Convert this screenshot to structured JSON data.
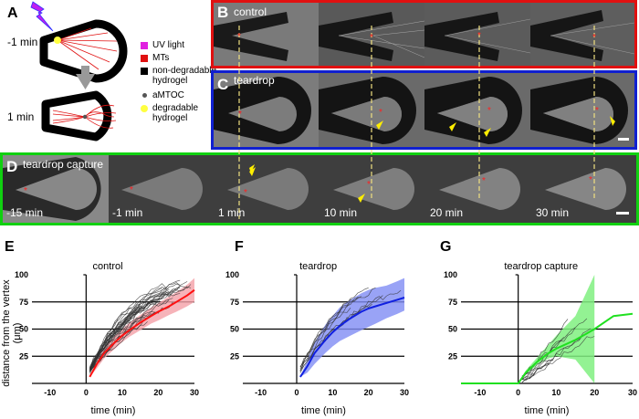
{
  "panel_a": {
    "letter": "A",
    "time_before": "-1 min",
    "time_after": "1 min",
    "legend": [
      {
        "label": "UV light",
        "color": "#e020e0",
        "shape": "square"
      },
      {
        "label": "MTs",
        "color": "#e01010",
        "shape": "square"
      },
      {
        "label": "non-degradable",
        "label2": "hydrogel",
        "color": "#000000",
        "shape": "square"
      },
      {
        "label": "aMTOC",
        "color": "#555555",
        "shape": "dot"
      },
      {
        "label": "degradable",
        "label2": "hydrogel",
        "color": "#ffff40",
        "shape": "dot"
      }
    ]
  },
  "panel_b": {
    "letter": "B",
    "title": "control",
    "border_color": "#e01010"
  },
  "panel_c": {
    "letter": "C",
    "title": "teardrop",
    "border_color": "#1020d0"
  },
  "panel_d": {
    "letter": "D",
    "title": "teardrop capture",
    "border_color": "#10d010",
    "time_labels": [
      "-15 min",
      "-1 min",
      "1 min",
      "10 min",
      "20 min",
      "30 min"
    ]
  },
  "charts": {
    "ylabel": "distance from the vertex (μm)",
    "xlabel": "time (min)"
  },
  "chart_data": [
    {
      "type": "line",
      "panel": "E",
      "title": "control",
      "xlabel": "time (min)",
      "ylabel": "distance from the vertex (μm)",
      "xlim": [
        -15,
        30
      ],
      "ylim": [
        0,
        100
      ],
      "xticks": [
        -10,
        0,
        10,
        20,
        30
      ],
      "yticks": [
        25,
        50,
        75,
        100
      ],
      "gridlines_y": [
        25,
        50,
        75
      ],
      "mean_color": "#ff1010",
      "band_color": "#f4a0a8",
      "mean": {
        "x": [
          1,
          3,
          5,
          8,
          10,
          12,
          15,
          18,
          20,
          23,
          25,
          28,
          30
        ],
        "y": [
          6,
          18,
          28,
          38,
          44,
          49,
          56,
          62,
          66,
          71,
          75,
          81,
          86
        ]
      },
      "band_upper": [
        6,
        22,
        33,
        44,
        50,
        56,
        63,
        70,
        74,
        80,
        84,
        91,
        97
      ],
      "band_lower": [
        6,
        14,
        23,
        32,
        38,
        43,
        49,
        55,
        58,
        63,
        66,
        71,
        75
      ],
      "traces_note": "~30 individual grey traces"
    },
    {
      "type": "line",
      "panel": "F",
      "title": "teardrop",
      "xlabel": "time (min)",
      "xlim": [
        -15,
        30
      ],
      "ylim": [
        0,
        100
      ],
      "xticks": [
        -10,
        0,
        10,
        20,
        30
      ],
      "yticks": [
        25,
        50,
        75,
        100
      ],
      "gridlines_y": [
        25,
        50,
        75
      ],
      "mean_color": "#1020e0",
      "band_color": "#7f8cf4",
      "mean": {
        "x": [
          1,
          3,
          5,
          8,
          10,
          12,
          15,
          18,
          20,
          22,
          25,
          28,
          30
        ],
        "y": [
          6,
          16,
          28,
          40,
          47,
          53,
          60,
          66,
          69,
          71,
          74,
          77,
          79
        ]
      },
      "band_upper": [
        6,
        22,
        38,
        54,
        62,
        70,
        77,
        83,
        86,
        88,
        90,
        94,
        97
      ],
      "band_lower": [
        6,
        10,
        18,
        28,
        34,
        39,
        44,
        49,
        52,
        55,
        60,
        64,
        67
      ],
      "traces_note": "~8 individual grey traces"
    },
    {
      "type": "line",
      "panel": "G",
      "title": "teardrop capture",
      "xlabel": "time (min)",
      "xlim": [
        -15,
        30
      ],
      "ylim": [
        0,
        100
      ],
      "xticks": [
        -10,
        0,
        10,
        20,
        30
      ],
      "yticks": [
        25,
        50,
        75,
        100
      ],
      "gridlines_y": [
        25,
        50,
        75
      ],
      "mean_color": "#20e020",
      "band_color": "#80f080",
      "mean": {
        "x": [
          -15,
          0,
          2,
          5,
          8,
          10,
          15,
          20,
          25,
          30
        ],
        "y": [
          0,
          0,
          10,
          20,
          28,
          32,
          40,
          50,
          62,
          64
        ]
      },
      "band_upper": [
        0,
        0,
        12,
        24,
        36,
        44,
        62,
        100,
        null,
        null
      ],
      "band_lower": [
        0,
        0,
        8,
        17,
        23,
        25,
        22,
        0,
        null,
        null
      ],
      "traces_note": "~10 individual grey traces"
    }
  ]
}
